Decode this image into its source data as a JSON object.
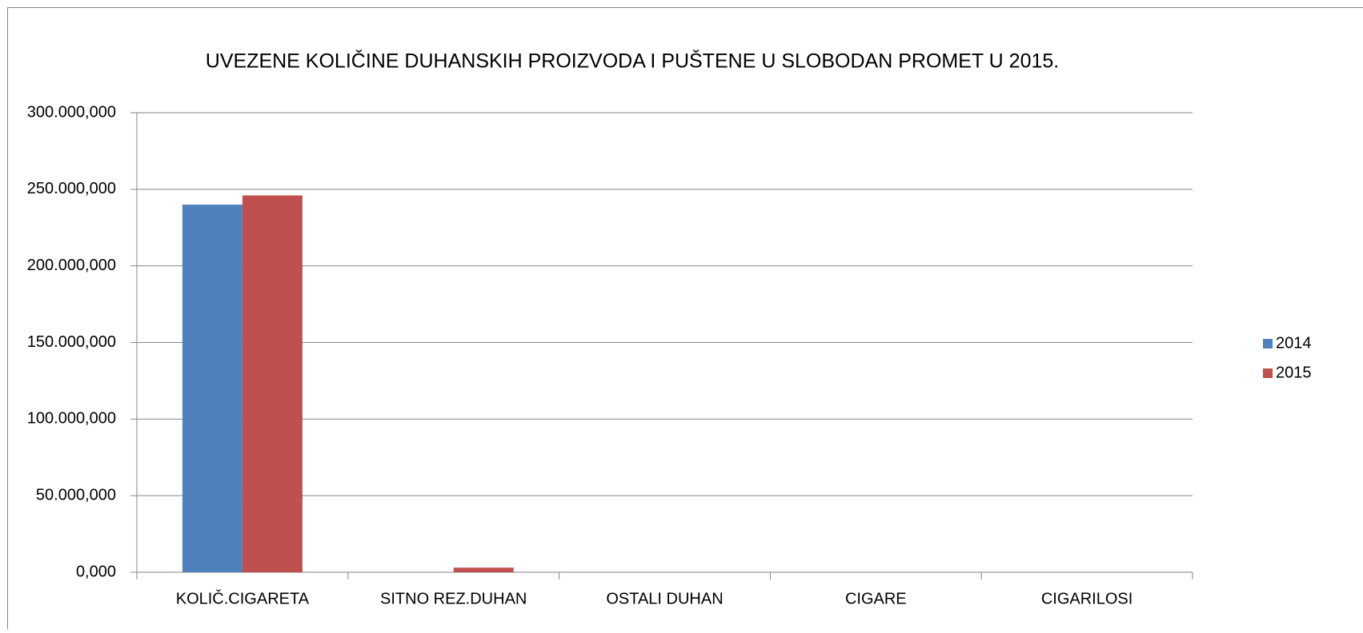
{
  "chart_data": {
    "type": "bar",
    "title": "UVEZENE KOLIČINE DUHANSKIH PROIZVODA I PUŠTENE U SLOBODAN PROMET  U 2015.",
    "categories": [
      "KOLIČ.CIGARETA",
      "SITNO REZ.DUHAN",
      "OSTALI DUHAN",
      "CIGARE",
      "CIGARILOSI"
    ],
    "series": [
      {
        "name": "2014",
        "color": "#4f81bd",
        "values": [
          240000000,
          0,
          0,
          0,
          0
        ]
      },
      {
        "name": "2015",
        "color": "#c0504d",
        "values": [
          246000000,
          3000000,
          0,
          0,
          0
        ]
      }
    ],
    "ylim": [
      0,
      300000000
    ],
    "yticks": [
      {
        "value": 0,
        "label": "0,000"
      },
      {
        "value": 50000000,
        "label": "50.000,000"
      },
      {
        "value": 100000000,
        "label": "100.000,000"
      },
      {
        "value": 150000000,
        "label": "150.000,000"
      },
      {
        "value": 200000000,
        "label": "200.000,000"
      },
      {
        "value": 250000000,
        "label": "250.000,000"
      },
      {
        "value": 300000000,
        "label": "300.000,000"
      }
    ],
    "grid": true,
    "legend": "right"
  }
}
